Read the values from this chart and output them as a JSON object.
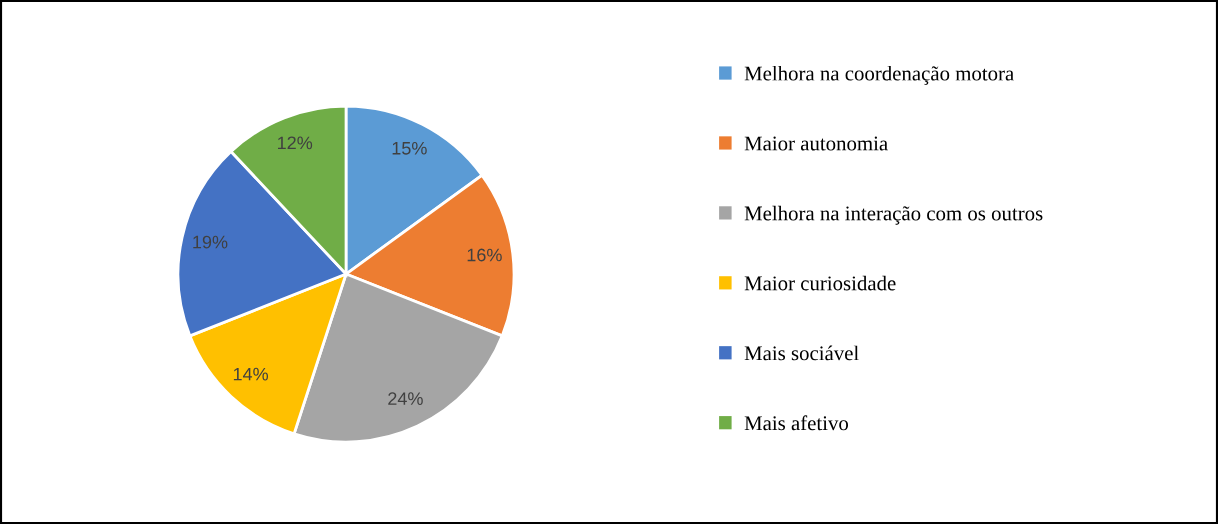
{
  "chart_data": {
    "type": "pie",
    "categories": [
      "Melhora na coordenação motora",
      "Maior autonomia",
      "Melhora na interação com os outros",
      "Maior curiosidade",
      "Mais sociável",
      "Mais afetivo"
    ],
    "values": [
      15,
      16,
      24,
      14,
      19,
      12
    ],
    "colors": [
      "#5b9bd5",
      "#ed7d31",
      "#a5a5a5",
      "#ffc000",
      "#4472c4",
      "#70ad47"
    ],
    "value_labels": [
      "15%",
      "16%",
      "24%",
      "14%",
      "19%",
      "12%"
    ],
    "legend": "right"
  }
}
